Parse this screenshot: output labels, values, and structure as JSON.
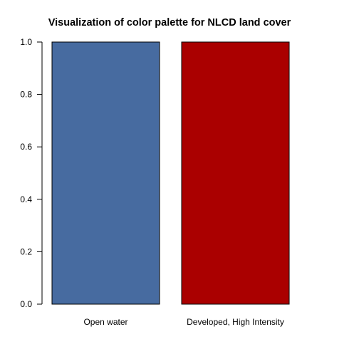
{
  "chart_data": {
    "type": "bar",
    "title": "Visualization of color palette for NLCD land cover",
    "xlabel": "",
    "ylabel": "",
    "ylim": [
      0,
      1
    ],
    "yticks": [
      "0.0",
      "0.2",
      "0.4",
      "0.6",
      "0.8",
      "1.0"
    ],
    "categories": [
      "Open water",
      "Developed, High Intensity"
    ],
    "values": [
      1,
      1
    ],
    "colors": [
      "#476ba0",
      "#aa0000"
    ],
    "grid": false,
    "legend": "none"
  }
}
